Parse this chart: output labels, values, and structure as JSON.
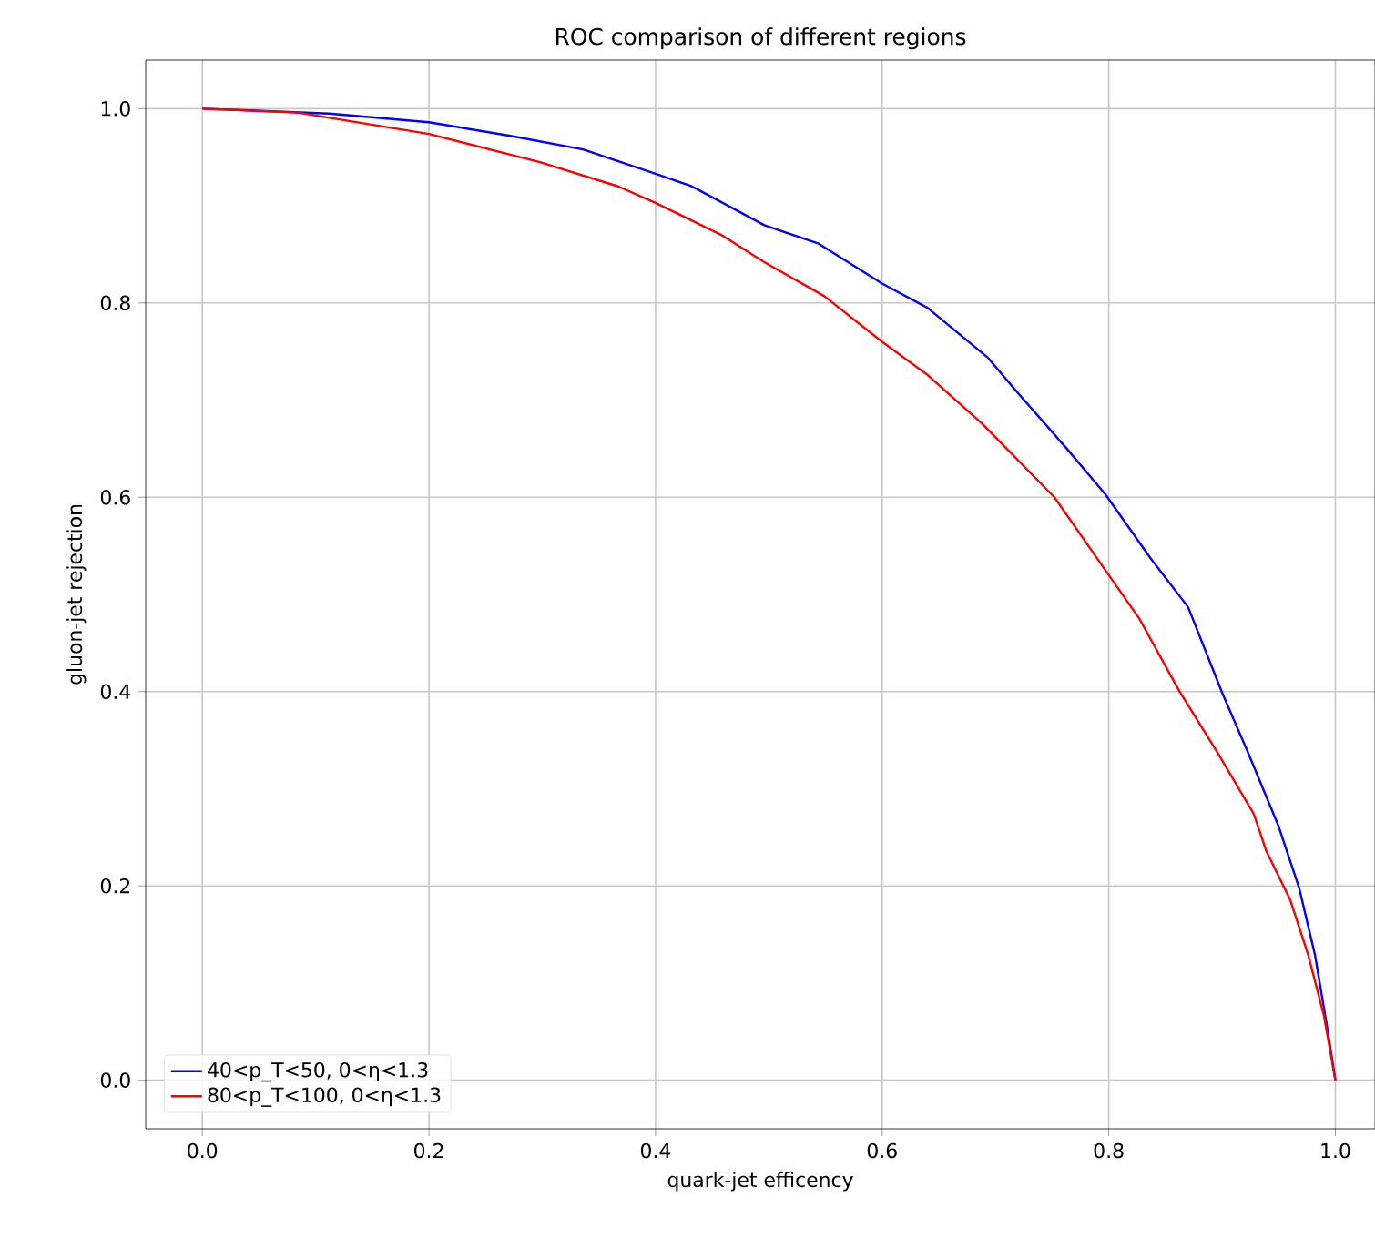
{
  "chart_data": {
    "type": "line",
    "title": "ROC comparison of different regions",
    "xlabel": "quark-jet efficency",
    "ylabel": "gluon-jet rejection",
    "xlim": [
      -0.05,
      1.035
    ],
    "ylim": [
      -0.05,
      1.05
    ],
    "xticks": [
      {
        "value": 0,
        "label": "0.0"
      },
      0.2,
      0.4,
      0.6,
      0.8,
      {
        "value": 1,
        "label": "1.0"
      }
    ],
    "yticks": [
      {
        "value": 0,
        "label": "0.0"
      },
      0.2,
      0.4,
      0.6,
      0.8,
      {
        "value": 1,
        "label": "1.0"
      }
    ],
    "grid": true,
    "legend": "bottom left",
    "line_style": "solid",
    "marker": "none",
    "series": [
      {
        "name": "40<p_T<50, 0<η<1.3",
        "color": "#0000ff",
        "x": [
          0,
          0.112,
          0.2,
          0.272,
          0.336,
          0.4,
          0.432,
          0.496,
          0.544,
          0.6,
          0.64,
          0.693,
          0.72,
          0.763,
          0.797,
          0.837,
          0.87,
          0.9,
          0.923,
          0.95,
          0.968,
          0.982,
          0.992,
          1.0
        ],
        "values": [
          1.0,
          0.995,
          0.986,
          0.972,
          0.958,
          0.933,
          0.92,
          0.88,
          0.861,
          0.82,
          0.795,
          0.744,
          0.707,
          0.65,
          0.603,
          0.537,
          0.487,
          0.399,
          0.337,
          0.261,
          0.198,
          0.129,
          0.06,
          0.0
        ]
      },
      {
        "name": "80<p_T<100, 0<η<1.3",
        "color": "#ff0000",
        "x": [
          0,
          0.084,
          0.2,
          0.298,
          0.367,
          0.4,
          0.458,
          0.496,
          0.549,
          0.6,
          0.64,
          0.688,
          0.752,
          0.797,
          0.827,
          0.862,
          0.896,
          0.928,
          0.939,
          0.96,
          0.976,
          0.99,
          1.0
        ],
        "values": [
          1.0,
          0.996,
          0.974,
          0.945,
          0.92,
          0.903,
          0.87,
          0.842,
          0.807,
          0.76,
          0.726,
          0.676,
          0.6,
          0.525,
          0.475,
          0.401,
          0.337,
          0.274,
          0.236,
          0.186,
          0.129,
          0.066,
          0.0
        ]
      }
    ]
  }
}
